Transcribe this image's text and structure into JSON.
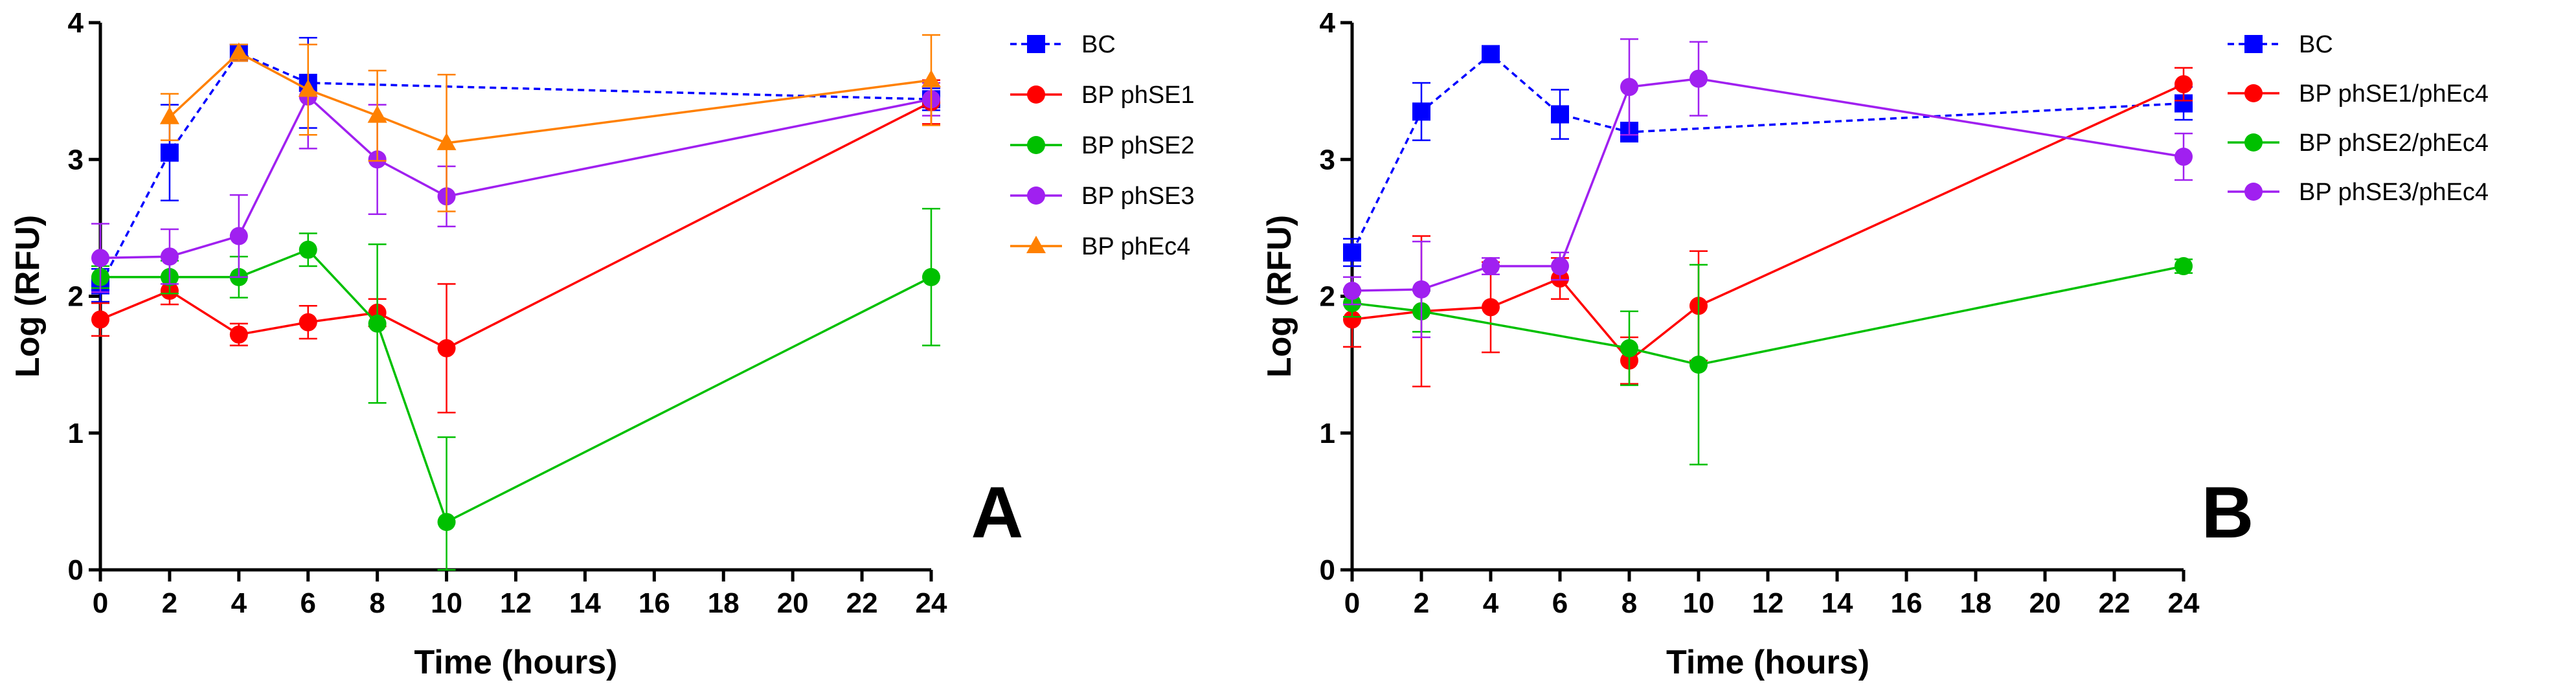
{
  "chart_data": [
    {
      "type": "line",
      "panel_label": "A",
      "xlabel": "Time (hours)",
      "ylabel": "Log (RFU)",
      "xlim": [
        0,
        24
      ],
      "ylim": [
        0,
        4
      ],
      "xticks": [
        0,
        2,
        4,
        6,
        8,
        10,
        12,
        14,
        16,
        18,
        20,
        22,
        24
      ],
      "yticks": [
        0,
        1,
        2,
        3,
        4
      ],
      "grid": false,
      "legend_position": "right",
      "series": [
        {
          "name": "BC",
          "color": "#0000ff",
          "marker": "square",
          "dashed": true,
          "x": [
            0,
            2,
            4,
            6,
            24
          ],
          "y": [
            2.08,
            3.05,
            3.78,
            3.56,
            3.44
          ],
          "err": [
            0.12,
            0.35,
            0.06,
            0.33,
            0.08
          ]
        },
        {
          "name": "BP phSE1",
          "color": "#ff0000",
          "marker": "circle",
          "dashed": false,
          "x": [
            0,
            2,
            4,
            6,
            8,
            10,
            24
          ],
          "y": [
            1.83,
            2.04,
            1.72,
            1.81,
            1.88,
            1.62,
            3.42
          ],
          "err": [
            0.12,
            0.1,
            0.08,
            0.12,
            0.1,
            0.47,
            0.16
          ]
        },
        {
          "name": "BP phSE2",
          "color": "#00c000",
          "marker": "circle",
          "dashed": false,
          "x": [
            0,
            2,
            4,
            6,
            8,
            10,
            24
          ],
          "y": [
            2.14,
            2.14,
            2.14,
            2.34,
            1.8,
            0.35,
            2.14
          ],
          "err": [
            0.08,
            0.12,
            0.15,
            0.12,
            0.58,
            0.62,
            0.5
          ]
        },
        {
          "name": "BP phSE3",
          "color": "#a020f0",
          "marker": "circle",
          "dashed": false,
          "x": [
            0,
            2,
            4,
            6,
            8,
            10,
            24
          ],
          "y": [
            2.28,
            2.29,
            2.44,
            3.46,
            3.0,
            2.73,
            3.44
          ],
          "err": [
            0.25,
            0.2,
            0.3,
            0.38,
            0.4,
            0.22,
            0.12
          ]
        },
        {
          "name": "BP phEc4",
          "color": "#ff8000",
          "marker": "triangle",
          "dashed": false,
          "x": [
            2,
            4,
            6,
            8,
            10,
            24
          ],
          "y": [
            3.31,
            3.78,
            3.51,
            3.32,
            3.12,
            3.58
          ],
          "err": [
            0.17,
            0.06,
            0.33,
            0.33,
            0.5,
            0.33
          ]
        }
      ]
    },
    {
      "type": "line",
      "panel_label": "B",
      "xlabel": "Time (hours)",
      "ylabel": "Log (RFU)",
      "xlim": [
        0,
        24
      ],
      "ylim": [
        0,
        4
      ],
      "xticks": [
        0,
        2,
        4,
        6,
        8,
        10,
        12,
        14,
        16,
        18,
        20,
        22,
        24
      ],
      "yticks": [
        0,
        1,
        2,
        3,
        4
      ],
      "grid": false,
      "legend_position": "right",
      "series": [
        {
          "name": "BC",
          "color": "#0000ff",
          "marker": "square",
          "dashed": true,
          "x": [
            0,
            2,
            4,
            6,
            8,
            24
          ],
          "y": [
            2.32,
            3.35,
            3.77,
            3.33,
            3.2,
            3.41
          ],
          "err": [
            0.1,
            0.21,
            0.04,
            0.18,
            0.07,
            0.12
          ]
        },
        {
          "name": "BP phSE1/phEc4",
          "color": "#ff0000",
          "marker": "circle",
          "dashed": false,
          "x": [
            0,
            2,
            4,
            6,
            8,
            10,
            24
          ],
          "y": [
            1.83,
            1.89,
            1.92,
            2.13,
            1.53,
            1.93,
            3.55
          ],
          "err": [
            0.2,
            0.55,
            0.33,
            0.15,
            0.17,
            0.4,
            0.12
          ]
        },
        {
          "name": "BP phSE2/phEc4",
          "color": "#00c000",
          "marker": "circle",
          "dashed": false,
          "x": [
            0,
            2,
            8,
            10,
            24
          ],
          "y": [
            1.95,
            1.89,
            1.62,
            1.5,
            2.22
          ],
          "err": [
            0.1,
            0.15,
            0.27,
            0.73,
            0.05
          ]
        },
        {
          "name": "BP phSE3/phEc4",
          "color": "#a020f0",
          "marker": "circle",
          "dashed": false,
          "x": [
            0,
            2,
            4,
            6,
            8,
            10,
            24
          ],
          "y": [
            2.04,
            2.05,
            2.22,
            2.22,
            3.53,
            3.59,
            3.02
          ],
          "err": [
            0.1,
            0.35,
            0.06,
            0.1,
            0.35,
            0.27,
            0.17
          ]
        }
      ]
    }
  ]
}
